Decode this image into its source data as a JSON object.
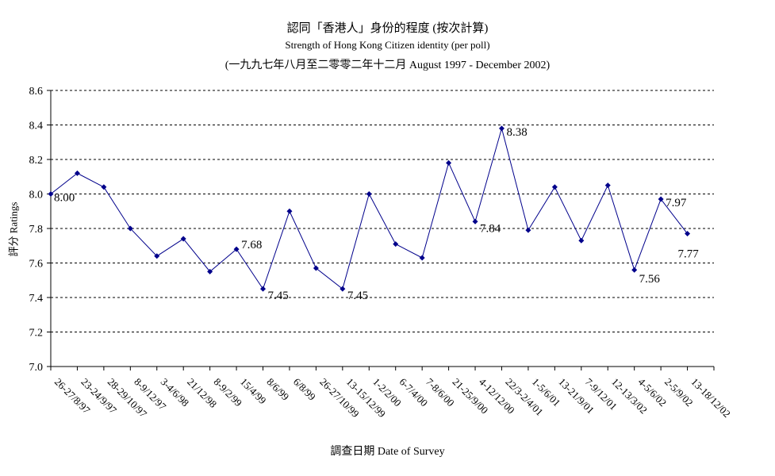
{
  "titles": {
    "line1": "認同「香港人」身份的程度 (按次計算)",
    "line2": "Strength of Hong Kong Citizen identity (per poll)",
    "line3": "(一九九七年八月至二零零二年十二月 August 1997 - December 2002)"
  },
  "chart_data": {
    "type": "line",
    "title": "認同「香港人」身份的程度 (按次計算)",
    "subtitle": "Strength of Hong Kong Citizen identity (per poll) (一九九七年八月至二零零二年十二月 August 1997 - December 2002)",
    "xlabel": "調查日期 Date of Survey",
    "ylabel": "評分 Ratings",
    "ylim": [
      7.0,
      8.6
    ],
    "yticks": [
      "7.0",
      "7.2",
      "7.4",
      "7.6",
      "7.8",
      "8.0",
      "8.2",
      "8.4",
      "8.6"
    ],
    "grid": "horizontal dashed",
    "legend": "none",
    "line_color": "#00008b",
    "categories": [
      "26-27/8/97",
      "23-24/9/97",
      "28-29/10/97",
      "8-9/12/97",
      "3-4/6/98",
      "21/12/98",
      "8-9/2/99",
      "15/4/99",
      "8/6/99",
      "6/8/99",
      "26-27/10/99",
      "13-15/12/99",
      "1-2/2/00",
      "6-7/4/00",
      "7-8/6/00",
      "21-25/9/00",
      "4-12/12/00",
      "22/3-2/4/01",
      "1-5/6/01",
      "13-21/9/01",
      "7-9/12/01",
      "12-13/3/02",
      "4-5/6/02",
      "2-5/9/02",
      "13-18/12/02"
    ],
    "values": [
      8.0,
      8.12,
      8.04,
      7.8,
      7.64,
      7.74,
      7.55,
      7.68,
      7.45,
      7.9,
      7.57,
      7.45,
      8.0,
      7.71,
      7.63,
      8.18,
      7.84,
      8.38,
      7.79,
      8.04,
      7.73,
      8.05,
      7.56,
      7.97,
      7.77
    ],
    "data_labels": [
      {
        "index": 0,
        "text": "8.00"
      },
      {
        "index": 7,
        "text": "7.68"
      },
      {
        "index": 8,
        "text": "7.45"
      },
      {
        "index": 11,
        "text": "7.45"
      },
      {
        "index": 16,
        "text": "7.84"
      },
      {
        "index": 17,
        "text": "8.38"
      },
      {
        "index": 22,
        "text": "7.56"
      },
      {
        "index": 23,
        "text": "7.97"
      },
      {
        "index": 24,
        "text": "7.77"
      }
    ]
  }
}
